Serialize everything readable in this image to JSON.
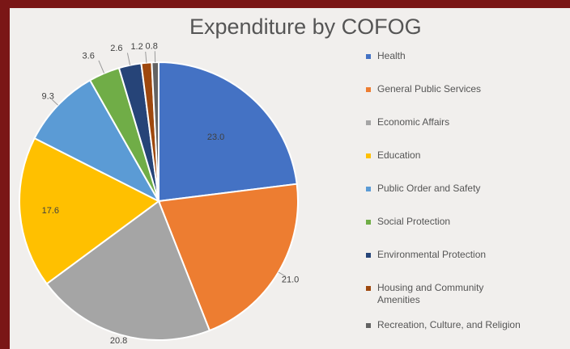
{
  "chart_data": {
    "type": "pie",
    "title": "Expenditure by COFOG",
    "legend_position": "right",
    "slices": [
      {
        "label": "Health",
        "value": 23.0,
        "value_label": "23.0",
        "color": "#4472c4"
      },
      {
        "label": "General Public Services",
        "value": 21.0,
        "value_label": "21.0",
        "color": "#ed7d31"
      },
      {
        "label": "Economic Affairs",
        "value": 20.8,
        "value_label": "20.8",
        "color": "#a5a5a5"
      },
      {
        "label": "Education",
        "value": 17.6,
        "value_label": "17.6",
        "color": "#ffc000"
      },
      {
        "label": "Public Order and Safety",
        "value": 9.3,
        "value_label": "9.3",
        "color": "#5b9bd5"
      },
      {
        "label": "Social Protection",
        "value": 3.6,
        "value_label": "3.6",
        "color": "#70ad47"
      },
      {
        "label": "Environmental Protection",
        "value": 2.6,
        "value_label": "2.6",
        "color": "#264478"
      },
      {
        "label": "Housing and Community Amenities",
        "value": 1.2,
        "value_label": "1.2",
        "color": "#9e480e"
      },
      {
        "label": "Recreation, Culture, and Religion",
        "value": 0.8,
        "value_label": "0.8",
        "color": "#636363"
      }
    ]
  }
}
